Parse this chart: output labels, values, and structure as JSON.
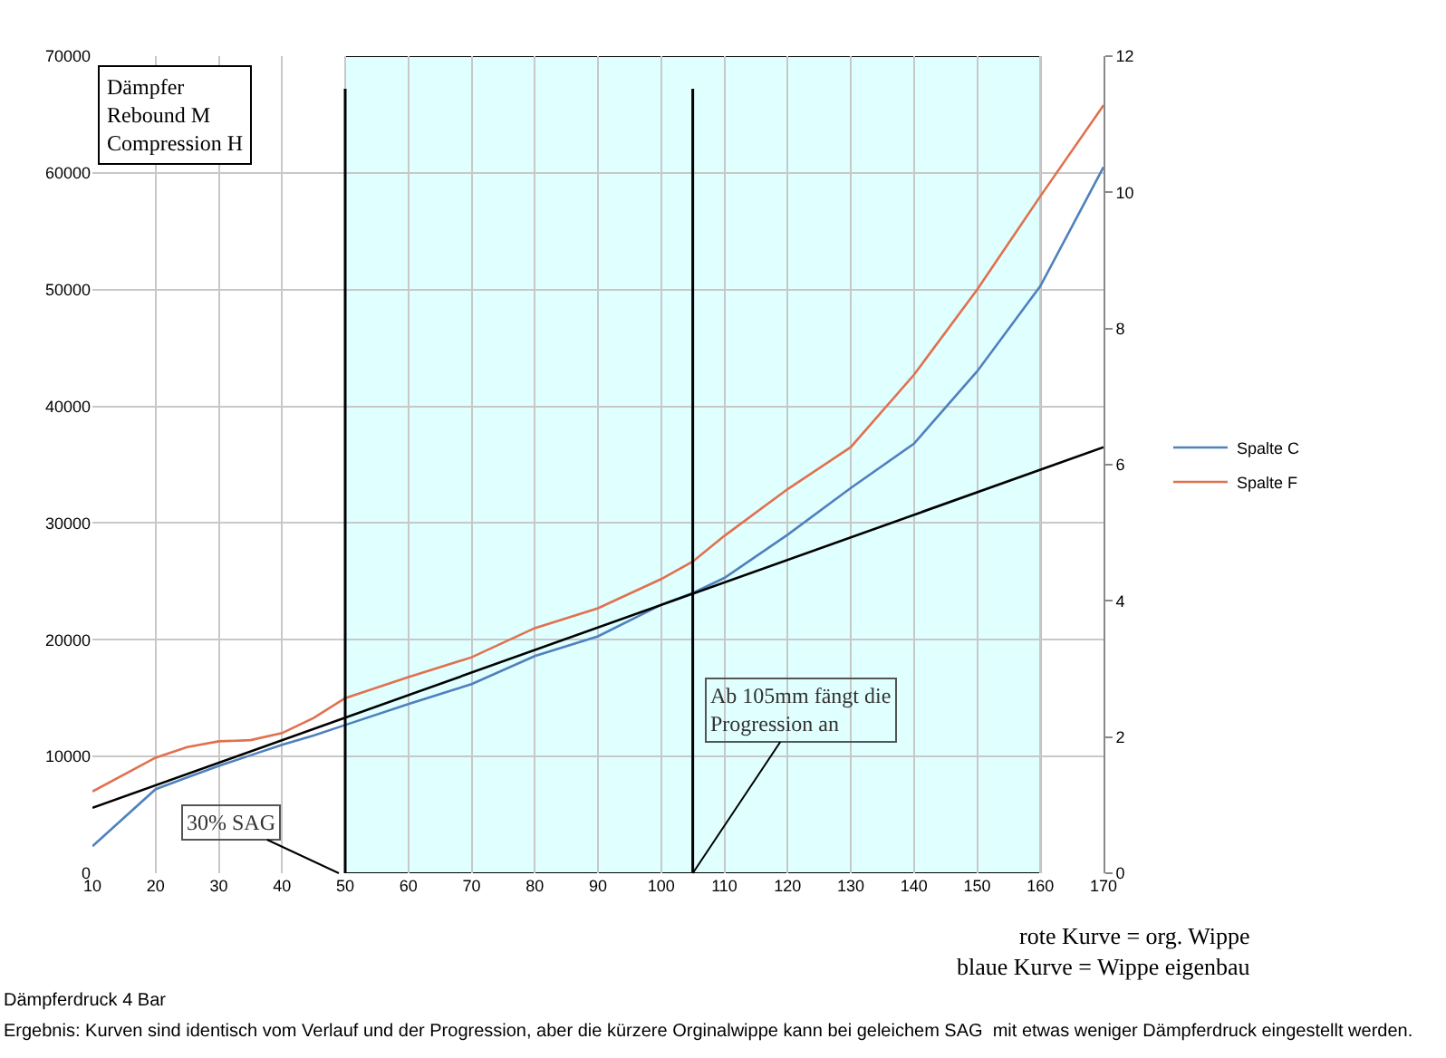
{
  "chart_data": {
    "type": "line",
    "title": "Dämpfer\nRebound M\nCompression H",
    "x": [
      10,
      20,
      25,
      30,
      35,
      40,
      45,
      50,
      60,
      70,
      80,
      90,
      100,
      105,
      110,
      120,
      130,
      140,
      150,
      160,
      170
    ],
    "series": [
      {
        "name": "Spalte C",
        "color": "#4f81bd",
        "values": [
          2300,
          7200,
          8200,
          9200,
          10100,
          11000,
          11800,
          12700,
          14500,
          16200,
          18600,
          20300,
          23000,
          24000,
          25300,
          29000,
          33000,
          36800,
          43000,
          50300,
          60500
        ]
      },
      {
        "name": "Spalte F",
        "color": "#e0714f",
        "values": [
          7000,
          9900,
          10800,
          11300,
          11400,
          12000,
          13300,
          15000,
          16800,
          18500,
          21000,
          22700,
          25200,
          26700,
          28900,
          32900,
          36500,
          42700,
          50000,
          58000,
          65800
        ]
      },
      {
        "type": "line",
        "color": "#000000",
        "x": [
          10,
          170
        ],
        "values": [
          5600,
          36500
        ]
      }
    ],
    "xlim": [
      10,
      170
    ],
    "xticks": [
      10,
      20,
      30,
      40,
      50,
      60,
      70,
      80,
      90,
      100,
      110,
      120,
      130,
      140,
      150,
      160,
      170
    ],
    "ylim": [
      0,
      70000
    ],
    "yticks": [
      0,
      10000,
      20000,
      30000,
      40000,
      50000,
      60000,
      70000
    ],
    "y2lim": [
      0,
      12
    ],
    "y2ticks": [
      0,
      2,
      4,
      6,
      8,
      10,
      12
    ],
    "bands": [
      {
        "axis": "x",
        "from": 50,
        "to": 160,
        "color": "#e0ffff"
      }
    ],
    "ref_lines": [
      {
        "axis": "x",
        "value": 50,
        "color": "#000000"
      },
      {
        "axis": "x",
        "value": 105,
        "color": "#000000"
      }
    ],
    "annotations": [
      {
        "text": "30% SAG",
        "x": 49,
        "y": 0
      },
      {
        "text": "Ab 105mm fängt die\nProgression an",
        "x": 105,
        "y": 0
      },
      "rote Kurve = org. Wippe\nblaue Kurve = Wippe eigenbau",
      "Dämpferdruck 4 Bar",
      "Ergebnis: Kurven sind identisch vom Verlauf und der Progression, aber die kürzere Orginalwippe kann bei geleichem SAG  mit etwas weniger Dämpferdruck eingestellt werden."
    ],
    "grid": true,
    "legend": "right",
    "marker": "none",
    "line_style": "solid"
  }
}
